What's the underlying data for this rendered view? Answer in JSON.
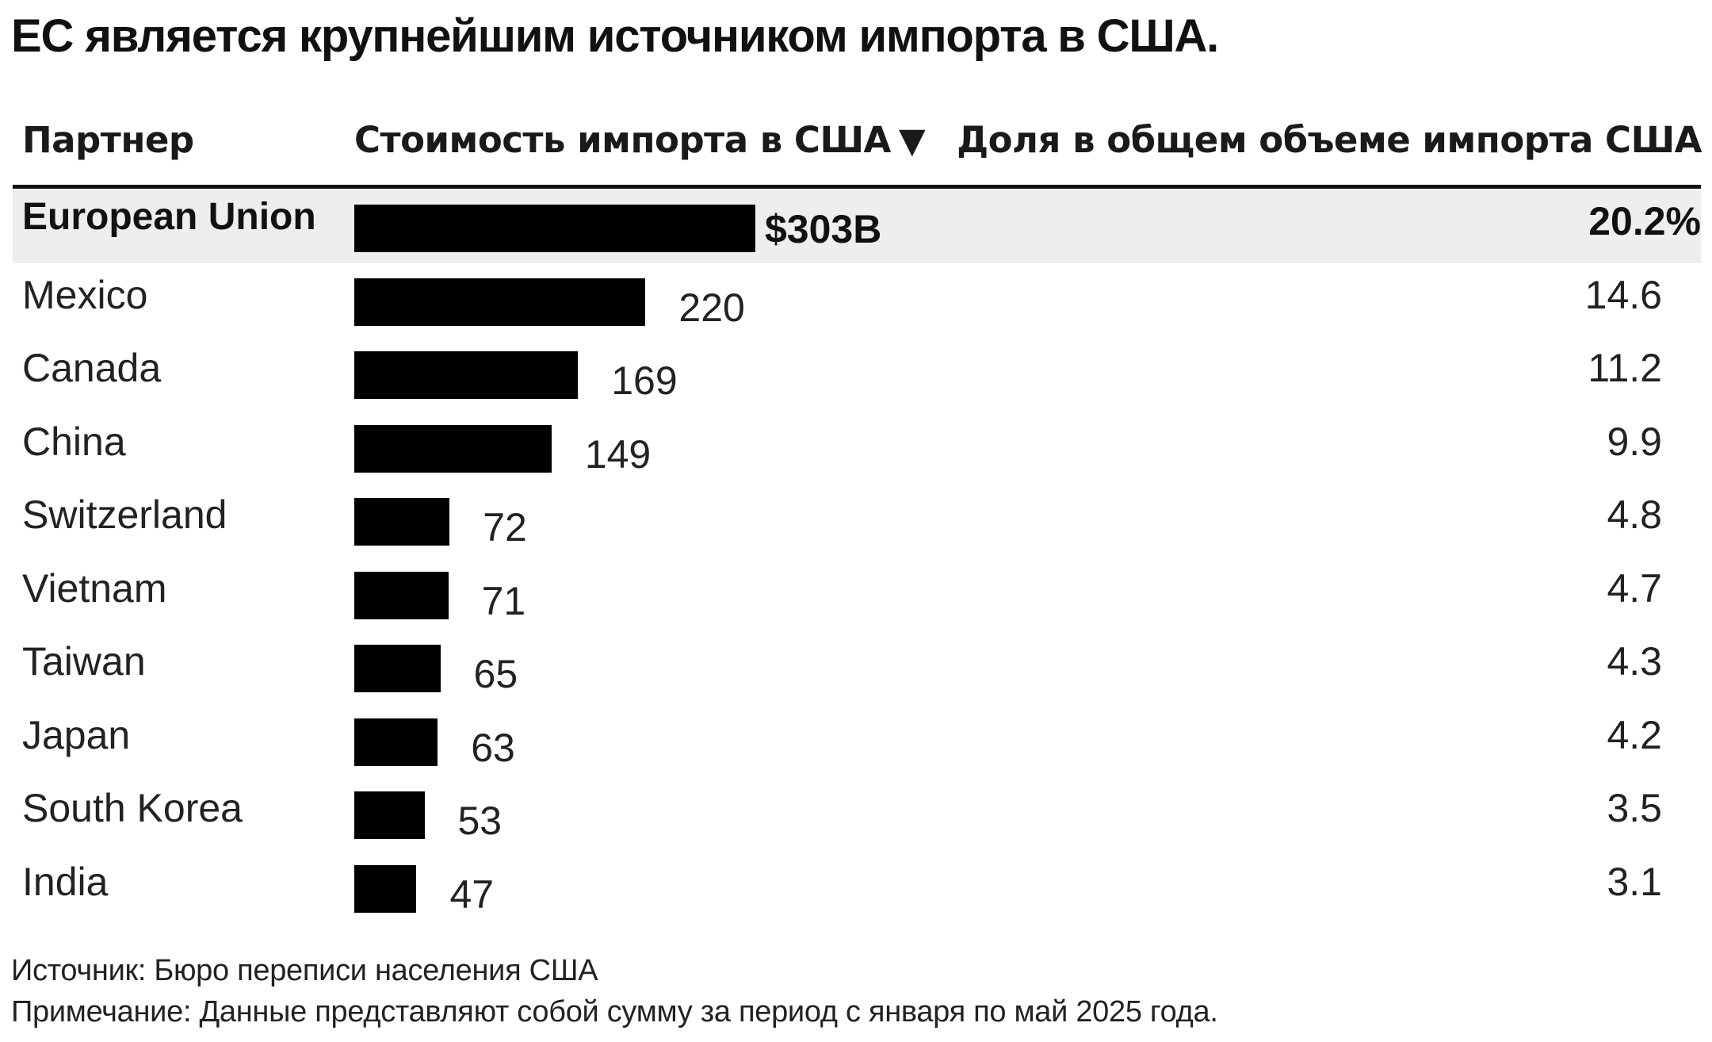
{
  "title": "ЕС является крупнейшим источником импорта в США.",
  "columns": {
    "partner": "Партнер",
    "value": "Стоимость импорта в США",
    "sort_indicator": "▼",
    "share": "Доля в общем объеме импорта США"
  },
  "chart_data": {
    "type": "bar",
    "title": "ЕС является крупнейшим источником импорта в США.",
    "orientation": "horizontal",
    "categories": [
      "European Union",
      "Mexico",
      "Canada",
      "China",
      "Switzerland",
      "Vietnam",
      "Taiwan",
      "Japan",
      "South Korea",
      "India"
    ],
    "values": [
      303,
      220,
      169,
      149,
      72,
      71,
      65,
      63,
      53,
      47
    ],
    "value_labels": [
      "$303B",
      "220",
      "169",
      "149",
      "72",
      "71",
      "65",
      "63",
      "53",
      "47"
    ],
    "shares": [
      "20.2%",
      "14.6",
      "11.2",
      "9.9",
      "4.8",
      "4.7",
      "4.3",
      "4.2",
      "3.5",
      "3.1"
    ],
    "bar_color": "#000000",
    "highlight_color": "#eeeeee",
    "highlight_index": 0
  },
  "footer": {
    "source": "Источник: Бюро переписи населения США",
    "note": "Примечание: Данные представляют собой сумму за период с января по май 2025 года."
  }
}
